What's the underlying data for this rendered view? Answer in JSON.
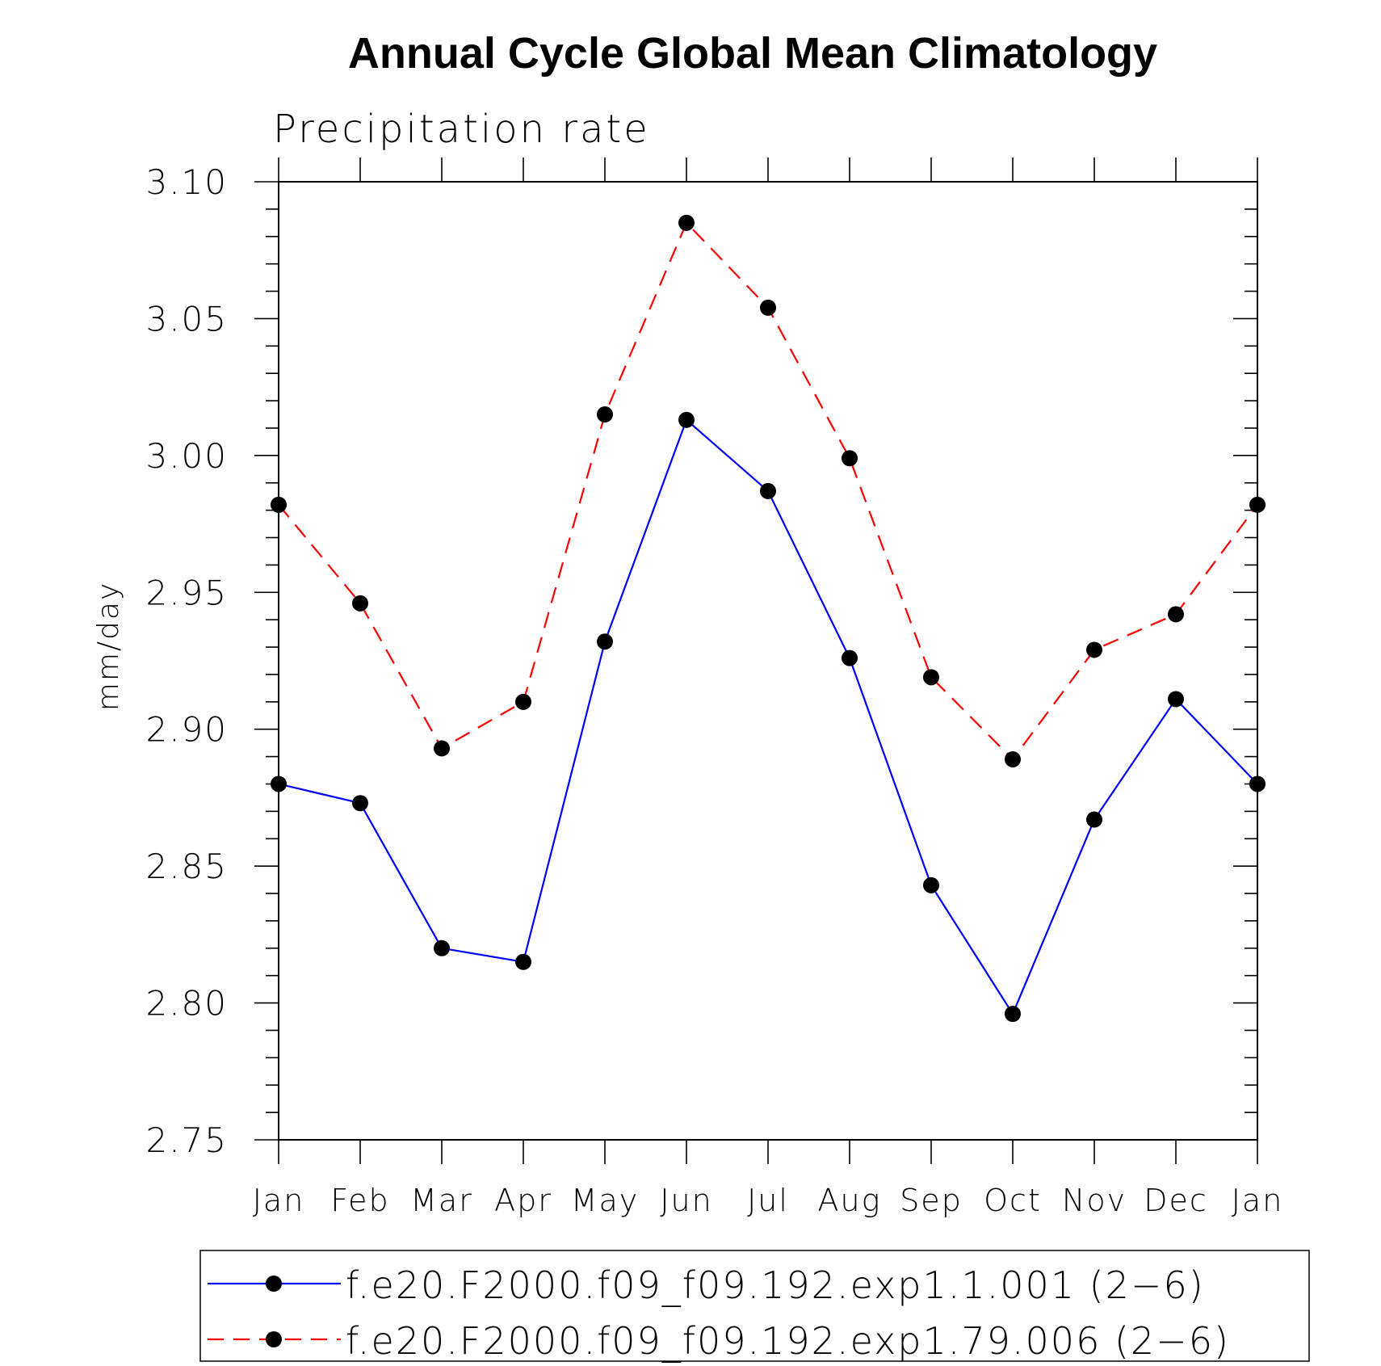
{
  "chart_data": {
    "type": "line",
    "title": "Annual Cycle Global Mean Climatology",
    "subtitle": "Precipitation rate",
    "ylabel": "mm/day",
    "xlabel": "",
    "ylim": [
      2.75,
      3.1
    ],
    "yticks": [
      "2.75",
      "2.80",
      "2.85",
      "2.90",
      "2.95",
      "3.00",
      "3.05",
      "3.10"
    ],
    "categories": [
      "Jan",
      "Feb",
      "Mar",
      "Apr",
      "May",
      "Jun",
      "Jul",
      "Aug",
      "Sep",
      "Oct",
      "Nov",
      "Dec",
      "Jan"
    ],
    "grid": false,
    "legend_position": "bottom",
    "series": [
      {
        "name": "f.e20.F2000.f09_f09.192.exp1.1.001 (2−6)",
        "color": "#0000ff",
        "dash": "solid",
        "marker": "filled-circle",
        "values": [
          2.88,
          2.873,
          2.82,
          2.815,
          2.932,
          3.013,
          2.987,
          2.926,
          2.843,
          2.796,
          2.867,
          2.911,
          2.88
        ]
      },
      {
        "name": "f.e20.F2000.f09_f09.192.exp1.79.006 (2−6)",
        "color": "#ff0000",
        "dash": "dashed",
        "marker": "filled-circle",
        "values": [
          2.982,
          2.946,
          2.893,
          2.91,
          3.015,
          3.085,
          3.054,
          2.999,
          2.919,
          2.889,
          2.929,
          2.942,
          2.982
        ]
      }
    ]
  }
}
